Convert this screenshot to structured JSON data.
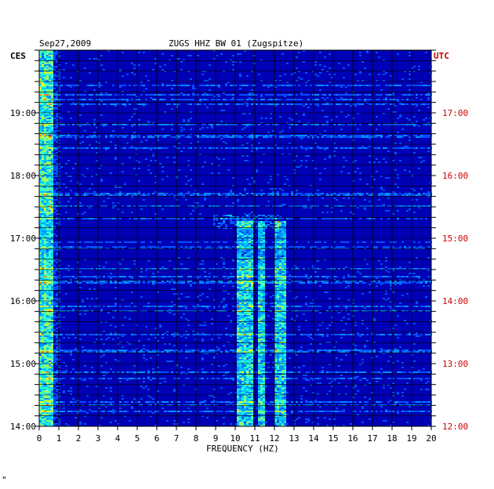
{
  "header": {
    "date": "Sep27,2009",
    "station": "ZUGS HHZ BW 01 (Zugspitze)"
  },
  "left_axis_label": "CES",
  "right_axis_label": "UTC",
  "footer_mark": "\"",
  "colors": {
    "background_field": "#0000b4",
    "left_labels": "#000000",
    "right_labels": "#cc0000",
    "grid": "#000000"
  },
  "chart_data": {
    "type": "heatmap",
    "title": "ZUGS HHZ BW 01 (Zugspitze)",
    "xlabel": "FREQUENCY (HZ)",
    "xlim": [
      0,
      20
    ],
    "x_ticks": [
      "0",
      "1",
      "2",
      "3",
      "4",
      "5",
      "6",
      "7",
      "8",
      "9",
      "10",
      "11",
      "12",
      "13",
      "14",
      "15",
      "16",
      "17",
      "18",
      "19",
      "20"
    ],
    "y_left_label": "CES",
    "y_left_ticks": [
      {
        "t": 14,
        "label": "14:00"
      },
      {
        "t": 15,
        "label": "15:00"
      },
      {
        "t": 16,
        "label": "16:00"
      },
      {
        "t": 17,
        "label": "17:00"
      },
      {
        "t": 18,
        "label": "18:00"
      },
      {
        "t": 19,
        "label": "19:00"
      }
    ],
    "y_right_label": "UTC",
    "y_right_ticks": [
      {
        "t": 14,
        "label": "12:00"
      },
      {
        "t": 15,
        "label": "13:00"
      },
      {
        "t": 16,
        "label": "14:00"
      },
      {
        "t": 17,
        "label": "15:00"
      },
      {
        "t": 18,
        "label": "16:00"
      },
      {
        "t": 19,
        "label": "17:00"
      }
    ],
    "ylim_hours_ces": [
      14,
      20
    ],
    "grid": true,
    "high_energy_bands_hz": [
      [
        0,
        0.7
      ],
      [
        10.0,
        10.8
      ],
      [
        11.1,
        11.5
      ],
      [
        12.0,
        12.5
      ]
    ],
    "notes_visible": []
  }
}
